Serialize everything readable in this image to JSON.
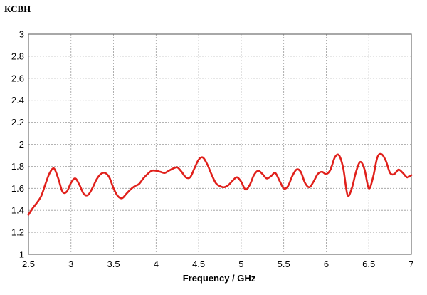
{
  "chart_data": {
    "type": "line",
    "title": "КСВН",
    "xlabel": "Frequency / GHz",
    "ylabel": "",
    "xlim": [
      2.5,
      7
    ],
    "ylim": [
      1,
      3
    ],
    "xticks": [
      2.5,
      3,
      3.5,
      4,
      4.5,
      5,
      5.5,
      6,
      6.5,
      7
    ],
    "xtick_labels": [
      "2.5",
      "3",
      "3.5",
      "4",
      "4.5",
      "5",
      "5.5",
      "6",
      "6.5",
      "7"
    ],
    "yticks": [
      1,
      1.2,
      1.4,
      1.6,
      1.8,
      2,
      2.2,
      2.4,
      2.6,
      2.8,
      3
    ],
    "ytick_labels": [
      "1",
      "1.2",
      "1.4",
      "1.6",
      "1.8",
      "2",
      "2.2",
      "2.4",
      "2.6",
      "2.8",
      "3"
    ],
    "grid": true,
    "series_color": "#e0201b",
    "series": [
      {
        "x": [
          2.5,
          2.55,
          2.6,
          2.65,
          2.7,
          2.75,
          2.8,
          2.85,
          2.9,
          2.95,
          3.0,
          3.05,
          3.1,
          3.15,
          3.2,
          3.25,
          3.3,
          3.35,
          3.4,
          3.45,
          3.5,
          3.55,
          3.6,
          3.65,
          3.7,
          3.75,
          3.8,
          3.85,
          3.9,
          3.95,
          4.0,
          4.05,
          4.1,
          4.15,
          4.2,
          4.25,
          4.3,
          4.35,
          4.4,
          4.45,
          4.5,
          4.55,
          4.6,
          4.65,
          4.7,
          4.75,
          4.8,
          4.85,
          4.9,
          4.95,
          5.0,
          5.05,
          5.1,
          5.15,
          5.2,
          5.25,
          5.3,
          5.35,
          5.4,
          5.45,
          5.5,
          5.55,
          5.6,
          5.65,
          5.7,
          5.75,
          5.8,
          5.85,
          5.9,
          5.95,
          6.0,
          6.05,
          6.1,
          6.15,
          6.2,
          6.25,
          6.3,
          6.35,
          6.4,
          6.45,
          6.5,
          6.55,
          6.6,
          6.65,
          6.7,
          6.75,
          6.8,
          6.85,
          6.9,
          6.95,
          7.0
        ],
        "y": [
          1.36,
          1.42,
          1.47,
          1.53,
          1.64,
          1.74,
          1.78,
          1.69,
          1.57,
          1.57,
          1.65,
          1.69,
          1.63,
          1.55,
          1.54,
          1.6,
          1.68,
          1.73,
          1.74,
          1.7,
          1.6,
          1.53,
          1.51,
          1.55,
          1.59,
          1.62,
          1.64,
          1.69,
          1.73,
          1.76,
          1.76,
          1.75,
          1.74,
          1.76,
          1.78,
          1.79,
          1.75,
          1.7,
          1.7,
          1.78,
          1.86,
          1.88,
          1.82,
          1.73,
          1.65,
          1.62,
          1.61,
          1.63,
          1.67,
          1.7,
          1.66,
          1.59,
          1.63,
          1.72,
          1.76,
          1.73,
          1.69,
          1.71,
          1.74,
          1.67,
          1.6,
          1.62,
          1.71,
          1.77,
          1.75,
          1.65,
          1.61,
          1.66,
          1.73,
          1.75,
          1.73,
          1.77,
          1.88,
          1.9,
          1.78,
          1.54,
          1.6,
          1.75,
          1.84,
          1.77,
          1.6,
          1.7,
          1.88,
          1.91,
          1.85,
          1.74,
          1.73,
          1.77,
          1.74,
          1.7,
          1.72
        ]
      }
    ]
  }
}
